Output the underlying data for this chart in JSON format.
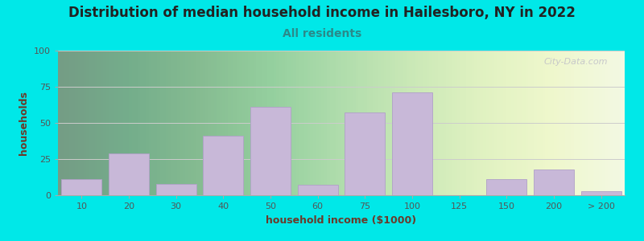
{
  "title": "Distribution of median household income in Hailesboro, NY in 2022",
  "subtitle": "All residents",
  "xlabel": "household income ($1000)",
  "ylabel": "households",
  "background_outer": "#00e8e8",
  "plot_bg_color": "#e8f5e0",
  "bar_color": "#c8b8d8",
  "bar_edge_color": "#b0a0c8",
  "yticks": [
    0,
    25,
    50,
    75,
    100
  ],
  "ylim": [
    0,
    100
  ],
  "categories": [
    "10",
    "20",
    "30",
    "40",
    "50",
    "60",
    "75",
    "100",
    "125",
    "150",
    "200",
    "> 200"
  ],
  "values": [
    11,
    29,
    8,
    41,
    61,
    7,
    57,
    71,
    0,
    11,
    18,
    3
  ],
  "title_fontsize": 12,
  "subtitle_fontsize": 10,
  "axis_label_fontsize": 9,
  "tick_fontsize": 8,
  "watermark": "City-Data.com",
  "title_color": "#222222",
  "subtitle_color": "#2a8a8a",
  "label_color": "#6b3a2a",
  "tick_color": "#555555",
  "grid_color": "#cccccc",
  "watermark_color": "#c0c0c8"
}
